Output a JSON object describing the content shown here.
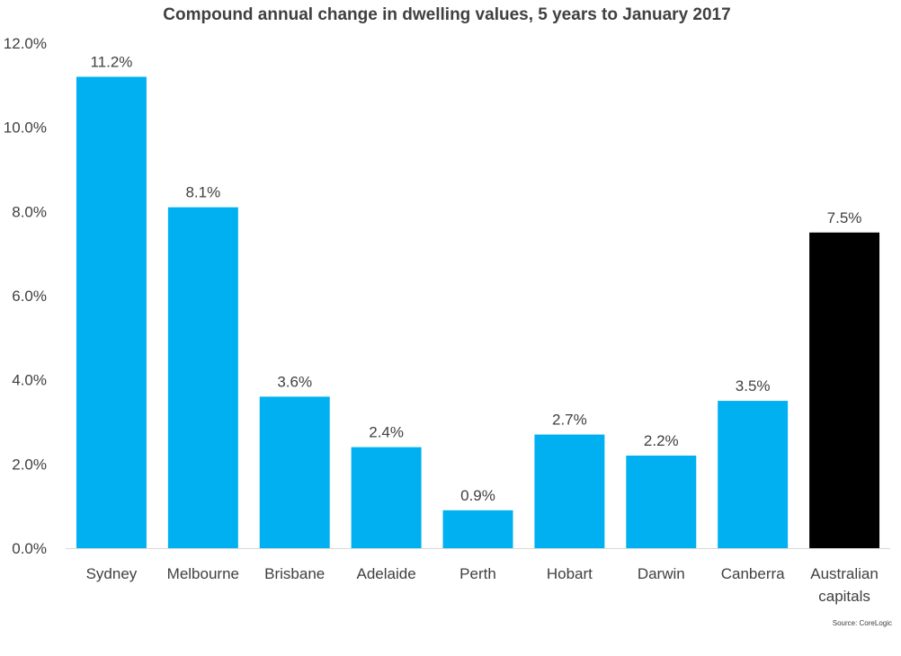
{
  "chart_data": {
    "type": "bar",
    "title": "Compound annual change in dwelling values, 5 years to January 2017",
    "xlabel": "",
    "ylabel": "",
    "ylim": [
      0,
      12
    ],
    "yticks": [
      "0.0%",
      "2.0%",
      "4.0%",
      "6.0%",
      "8.0%",
      "10.0%",
      "12.0%"
    ],
    "ytick_values": [
      0,
      2,
      4,
      6,
      8,
      10,
      12
    ],
    "categories": [
      [
        "Sydney"
      ],
      [
        "Melbourne"
      ],
      [
        "Brisbane"
      ],
      [
        "Adelaide"
      ],
      [
        "Perth"
      ],
      [
        "Hobart"
      ],
      [
        "Darwin"
      ],
      [
        "Canberra"
      ],
      [
        "Australian",
        "capitals"
      ]
    ],
    "values": [
      11.2,
      8.1,
      3.6,
      2.4,
      0.9,
      2.7,
      2.2,
      3.5,
      7.5
    ],
    "data_labels": [
      "11.2%",
      "8.1%",
      "3.6%",
      "2.4%",
      "0.9%",
      "2.7%",
      "2.2%",
      "3.5%",
      "7.5%"
    ],
    "bar_colors": [
      "#00b0f0",
      "#00b0f0",
      "#00b0f0",
      "#00b0f0",
      "#00b0f0",
      "#00b0f0",
      "#00b0f0",
      "#00b0f0",
      "#000000"
    ],
    "grid": false,
    "source": "Source: CoreLogic"
  }
}
